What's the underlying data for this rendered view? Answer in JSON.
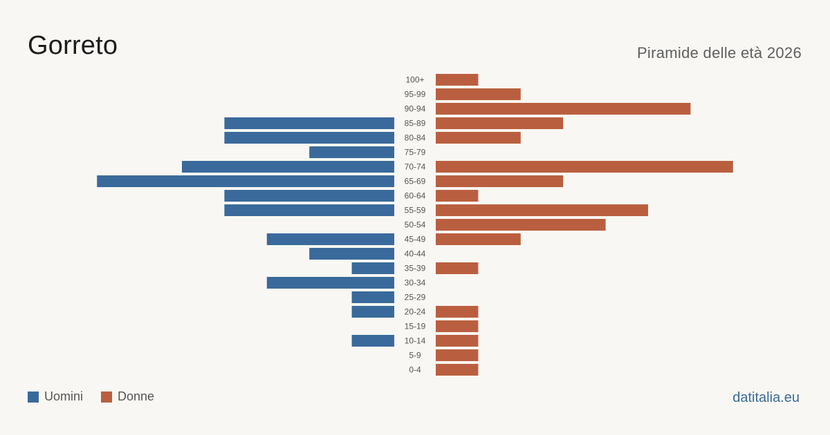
{
  "header": {
    "title": "Gorreto",
    "subtitle": "Piramide delle età 2026"
  },
  "legend": {
    "male_label": "Uomini",
    "female_label": "Donne"
  },
  "source": "datitalia.eu",
  "colors": {
    "male": "#3a6a9b",
    "female": "#b95f3f",
    "background": "#f9f7f3",
    "age_label": "#555555"
  },
  "chart_data": {
    "type": "bar",
    "orientation": "horizontal-pyramid",
    "categories": [
      "100+",
      "95-99",
      "90-94",
      "85-89",
      "80-84",
      "75-79",
      "70-74",
      "65-69",
      "60-64",
      "55-59",
      "50-54",
      "45-49",
      "40-44",
      "35-39",
      "30-34",
      "25-29",
      "20-24",
      "15-19",
      "10-14",
      "5-9",
      "0-4"
    ],
    "series": [
      {
        "name": "Uomini",
        "values": [
          0,
          0,
          0,
          4,
          4,
          2,
          5,
          7,
          4,
          4,
          0,
          3,
          2,
          1,
          3,
          1,
          1,
          0,
          1,
          0,
          0
        ]
      },
      {
        "name": "Donne",
        "values": [
          1,
          2,
          6,
          3,
          2,
          0,
          7,
          3,
          1,
          5,
          4,
          2,
          0,
          1,
          0,
          0,
          1,
          1,
          1,
          1,
          1
        ]
      }
    ],
    "xlim": [
      0,
      7
    ],
    "grid": false,
    "legend_position": "bottom-left"
  }
}
